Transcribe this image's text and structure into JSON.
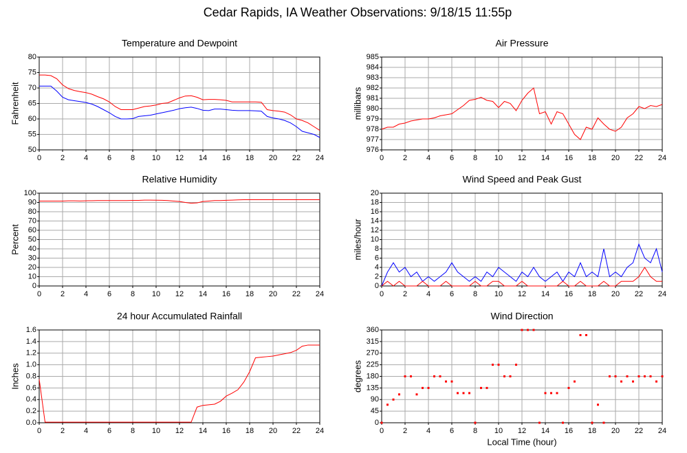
{
  "title": "Cedar Rapids, IA Weather Observations: 9/18/15 11:55p",
  "chart_data": [
    {
      "type": "line",
      "title": "Temperature and Dewpoint",
      "y_label": "Fahrenheit",
      "x": [
        0,
        0.5,
        1,
        1.5,
        2,
        2.5,
        3,
        3.5,
        4,
        4.5,
        5,
        5.5,
        6,
        6.5,
        7,
        7.5,
        8,
        8.5,
        9,
        9.5,
        10,
        10.5,
        11,
        11.5,
        12,
        12.5,
        13,
        13.5,
        14,
        14.5,
        15,
        15.5,
        16,
        16.5,
        17,
        17.5,
        18,
        18.5,
        19,
        19.5,
        20,
        20.5,
        21,
        21.5,
        22,
        22.5,
        23,
        23.5,
        24
      ],
      "series": [
        {
          "color": "#ff0000",
          "values": [
            74.2,
            74.2,
            74,
            73,
            71,
            69.8,
            69.2,
            68.8,
            68.5,
            68,
            67.2,
            66.5,
            65.5,
            64,
            63,
            63,
            63,
            63.5,
            64,
            64.2,
            64.5,
            65,
            65.2,
            66,
            66.8,
            67.4,
            67.5,
            67,
            66.2,
            66.3,
            66.3,
            66.2,
            66,
            65.5,
            65.5,
            65.5,
            65.5,
            65.5,
            65.4,
            63,
            62.7,
            62.5,
            62.2,
            61.3,
            60,
            59.5,
            58.7,
            57.5,
            56.3
          ]
        },
        {
          "color": "#0000ff",
          "values": [
            70.6,
            70.6,
            70.6,
            69,
            67,
            66.2,
            65.9,
            65.6,
            65.3,
            64.8,
            64,
            63,
            62,
            60.8,
            60,
            60,
            60.1,
            60.8,
            61,
            61.2,
            61.6,
            62,
            62.4,
            62.8,
            63.3,
            63.6,
            63.8,
            63.4,
            62.8,
            62.7,
            63.2,
            63.2,
            63,
            62.8,
            62.7,
            62.7,
            62.7,
            62.6,
            62.5,
            60.8,
            60.3,
            60,
            59.5,
            58.7,
            57.5,
            56,
            55.5,
            55,
            54
          ]
        }
      ],
      "xlim": [
        0,
        24
      ],
      "xticks": [
        0,
        2,
        4,
        6,
        8,
        10,
        12,
        14,
        16,
        18,
        20,
        22,
        24
      ],
      "ylim": [
        50,
        80
      ],
      "yticks": [
        50,
        55,
        60,
        65,
        70,
        75,
        80
      ],
      "grid": true
    },
    {
      "type": "line",
      "title": "Air Pressure",
      "y_label": "millibars",
      "x": [
        0,
        0.5,
        1,
        1.5,
        2,
        2.5,
        3,
        3.5,
        4,
        4.5,
        5,
        5.5,
        6,
        6.5,
        7,
        7.5,
        8,
        8.5,
        9,
        9.5,
        10,
        10.5,
        11,
        11.5,
        12,
        12.5,
        13,
        13.5,
        14,
        14.5,
        15,
        15.5,
        16,
        16.5,
        17,
        17.5,
        18,
        18.5,
        19,
        19.5,
        20,
        20.5,
        21,
        21.5,
        22,
        22.5,
        23,
        23.5,
        24
      ],
      "series": [
        {
          "color": "#ff0000",
          "values": [
            978,
            978.2,
            978.2,
            978.5,
            978.6,
            978.8,
            978.9,
            979,
            979,
            979.1,
            979.3,
            979.4,
            979.5,
            979.9,
            980.3,
            980.8,
            980.9,
            981.1,
            980.8,
            980.7,
            980.1,
            980.7,
            980.5,
            979.8,
            980.8,
            981.5,
            982,
            979.5,
            979.7,
            978.5,
            979.7,
            979.5,
            978.5,
            977.5,
            977,
            978.2,
            978,
            979.1,
            978.5,
            978,
            977.8,
            978.2,
            979.1,
            979.5,
            980.2,
            980,
            980.3,
            980.2,
            980.4
          ]
        }
      ],
      "xlim": [
        0,
        24
      ],
      "xticks": [
        0,
        2,
        4,
        6,
        8,
        10,
        12,
        14,
        16,
        18,
        20,
        22,
        24
      ],
      "ylim": [
        976,
        985
      ],
      "yticks": [
        976,
        977,
        978,
        979,
        980,
        981,
        982,
        983,
        984,
        985
      ],
      "grid": true
    },
    {
      "type": "line",
      "title": "Relative Humidity",
      "y_label": "Percent",
      "x": [
        0,
        0.5,
        1,
        1.5,
        2,
        2.5,
        3,
        3.5,
        4,
        4.5,
        5,
        5.5,
        6,
        6.5,
        7,
        7.5,
        8,
        8.5,
        9,
        9.5,
        10,
        10.5,
        11,
        11.5,
        12,
        12.5,
        13,
        13.5,
        14,
        14.5,
        15,
        15.5,
        16,
        16.5,
        17,
        17.5,
        18,
        18.5,
        19,
        19.5,
        20,
        20.5,
        21,
        21.5,
        22,
        22.5,
        23,
        23.5,
        24
      ],
      "series": [
        {
          "color": "#ff0000",
          "values": [
            91.5,
            91.5,
            91.5,
            91.5,
            91.5,
            91.8,
            91.8,
            91.6,
            91.8,
            91.9,
            92,
            92,
            92,
            92,
            92,
            92,
            92.2,
            92.2,
            92.5,
            92.5,
            92.4,
            92.3,
            92,
            91.5,
            91,
            90,
            89.2,
            89.5,
            91,
            91.5,
            92,
            92,
            92.3,
            92.5,
            92.8,
            93,
            93,
            93,
            93,
            93,
            93,
            93,
            93,
            93,
            93,
            93,
            93,
            93,
            93
          ]
        }
      ],
      "xlim": [
        0,
        24
      ],
      "xticks": [
        0,
        2,
        4,
        6,
        8,
        10,
        12,
        14,
        16,
        18,
        20,
        22,
        24
      ],
      "ylim": [
        0,
        100
      ],
      "yticks": [
        0,
        10,
        20,
        30,
        40,
        50,
        60,
        70,
        80,
        90,
        100
      ],
      "grid": true
    },
    {
      "type": "line",
      "title": "Wind Speed and Peak Gust",
      "y_label": "miles/hour",
      "x": [
        0,
        0.5,
        1,
        1.5,
        2,
        2.5,
        3,
        3.5,
        4,
        4.5,
        5,
        5.5,
        6,
        6.5,
        7,
        7.5,
        8,
        8.5,
        9,
        9.5,
        10,
        10.5,
        11,
        11.5,
        12,
        12.5,
        13,
        13.5,
        14,
        14.5,
        15,
        15.5,
        16,
        16.5,
        17,
        17.5,
        18,
        18.5,
        19,
        19.5,
        20,
        20.5,
        21,
        21.5,
        22,
        22.5,
        23,
        23.5,
        24
      ],
      "series": [
        {
          "color": "#0000ff",
          "values": [
            0,
            3,
            5,
            3,
            4,
            2,
            3,
            1,
            2,
            1,
            2,
            3,
            5,
            3,
            2,
            1,
            2,
            1,
            3,
            2,
            4,
            3,
            2,
            1,
            3,
            2,
            4,
            2,
            1,
            2,
            3,
            1,
            3,
            2,
            5,
            2,
            3,
            2,
            8,
            2,
            3,
            2,
            4,
            5,
            9,
            6,
            5,
            8,
            3
          ]
        },
        {
          "color": "#ff0000",
          "values": [
            0,
            1,
            0,
            1,
            0,
            0,
            0,
            1,
            0,
            0,
            0,
            1,
            0,
            0,
            0,
            0,
            1,
            0,
            0,
            1,
            1,
            0,
            0,
            0,
            1,
            0,
            0,
            0,
            0,
            0,
            0,
            1,
            0,
            0,
            1,
            0,
            0,
            0,
            1,
            0,
            0,
            1,
            1,
            1,
            2,
            4,
            2,
            1,
            1
          ]
        }
      ],
      "xlim": [
        0,
        24
      ],
      "xticks": [
        0,
        2,
        4,
        6,
        8,
        10,
        12,
        14,
        16,
        18,
        20,
        22,
        24
      ],
      "ylim": [
        0,
        20
      ],
      "yticks": [
        0,
        2,
        4,
        6,
        8,
        10,
        12,
        14,
        16,
        18,
        20
      ],
      "grid": true
    },
    {
      "type": "line",
      "title": "24 hour Accumulated Rainfall",
      "y_label": "Inches",
      "x": [
        0,
        0.5,
        1,
        1.5,
        2,
        2.5,
        3,
        3.5,
        4,
        4.5,
        5,
        5.5,
        6,
        6.5,
        7,
        7.5,
        8,
        8.5,
        9,
        9.5,
        10,
        10.5,
        11,
        11.5,
        12,
        12.5,
        13,
        13.5,
        14,
        14.5,
        15,
        15.5,
        16,
        16.5,
        17,
        17.5,
        18,
        18.5,
        19,
        19.5,
        20,
        20.5,
        21,
        21.5,
        22,
        22.5,
        23,
        23.5,
        24
      ],
      "series": [
        {
          "color": "#ff0000",
          "values": [
            0.75,
            0.01,
            0.01,
            0.01,
            0.01,
            0.01,
            0.01,
            0.01,
            0.01,
            0.01,
            0.01,
            0.01,
            0.01,
            0.01,
            0.01,
            0.01,
            0.01,
            0.01,
            0.01,
            0.01,
            0.01,
            0.01,
            0.01,
            0.01,
            0.01,
            0.01,
            0.01,
            0.27,
            0.3,
            0.31,
            0.32,
            0.37,
            0.46,
            0.51,
            0.57,
            0.7,
            0.88,
            1.12,
            1.13,
            1.14,
            1.15,
            1.17,
            1.19,
            1.21,
            1.25,
            1.32,
            1.34,
            1.34,
            1.34
          ]
        }
      ],
      "xlim": [
        0,
        24
      ],
      "xticks": [
        0,
        2,
        4,
        6,
        8,
        10,
        12,
        14,
        16,
        18,
        20,
        22,
        24
      ],
      "ylim": [
        0,
        1.6
      ],
      "yticks": [
        {
          "value": 0,
          "label": "0.0"
        },
        {
          "value": 0.2,
          "label": "0.2"
        },
        {
          "value": 0.4,
          "label": "0.4"
        },
        {
          "value": 0.6,
          "label": "0.6"
        },
        {
          "value": 0.8,
          "label": "0.8"
        },
        {
          "value": 1,
          "label": "1.0"
        },
        {
          "value": 1.2,
          "label": "1.2"
        },
        {
          "value": 1.4,
          "label": "1.4"
        },
        {
          "value": 1.6,
          "label": "1.6"
        }
      ],
      "grid": true
    },
    {
      "type": "scatter",
      "title": "Wind Direction",
      "y_label": "degrees",
      "x_label": "Local Time (hour)",
      "x": [
        0,
        0.5,
        1,
        1.5,
        2,
        2.5,
        3,
        3.5,
        4,
        4.5,
        5,
        5.5,
        6,
        6.5,
        7,
        7.5,
        8,
        8.5,
        9,
        9.5,
        10,
        10.5,
        11,
        11.5,
        12,
        12.5,
        13,
        13.5,
        14,
        14.5,
        15,
        15.5,
        16,
        16.5,
        17,
        17.5,
        18,
        18.5,
        19,
        19.5,
        20,
        20.5,
        21,
        21.5,
        22,
        22.5,
        23,
        23.5,
        24
      ],
      "series": [
        {
          "color": "#ff0000",
          "values": [
            0,
            70,
            90,
            110,
            180,
            180,
            110,
            135,
            135,
            180,
            180,
            160,
            160,
            115,
            115,
            115,
            0,
            135,
            135,
            225,
            225,
            180,
            180,
            225,
            360,
            360,
            360,
            0,
            115,
            115,
            115,
            0,
            135,
            160,
            340,
            340,
            0,
            70,
            0,
            180,
            180,
            160,
            180,
            160,
            180,
            180,
            180,
            160,
            180
          ]
        }
      ],
      "xlim": [
        0,
        24
      ],
      "xticks": [
        0,
        2,
        4,
        6,
        8,
        10,
        12,
        14,
        16,
        18,
        20,
        22,
        24
      ],
      "ylim": [
        0,
        360
      ],
      "yticks": [
        0,
        45,
        90,
        135,
        180,
        225,
        270,
        315,
        360
      ],
      "grid": true
    }
  ]
}
